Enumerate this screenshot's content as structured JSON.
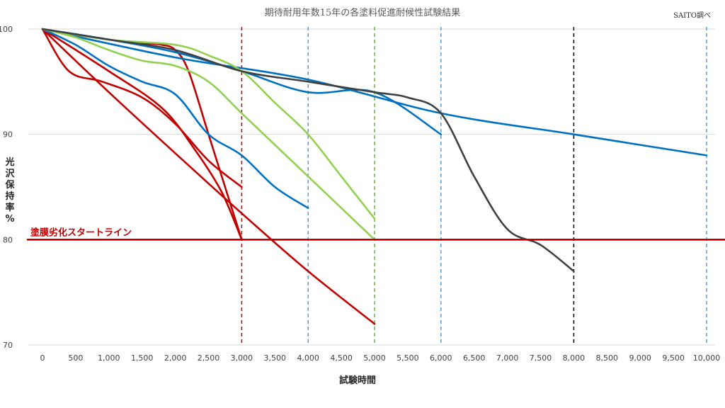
{
  "chart_data": {
    "type": "line",
    "title": "期待耐用年数15年の各塗料促進耐候性試験結果",
    "note": "SAITO調べ",
    "xlabel": "試験時間",
    "ylabel": "光沢保持率%",
    "xlim": [
      0,
      10000
    ],
    "ylim": [
      70,
      100
    ],
    "x_ticks": [
      0,
      500,
      1000,
      1500,
      2000,
      2500,
      3000,
      3500,
      4000,
      4500,
      5000,
      5500,
      6000,
      6500,
      7000,
      7500,
      8000,
      8500,
      9000,
      9500,
      10000
    ],
    "x_tick_labels": [
      "0",
      "500",
      "1,000",
      "1,500",
      "2,000",
      "2,500",
      "3,000",
      "3,500",
      "4,000",
      "4,500",
      "5,000",
      "5,500",
      "6,000",
      "6,500",
      "7,000",
      "7,500",
      "8,000",
      "8,500",
      "9,000",
      "9,500",
      "10,000"
    ],
    "y_ticks": [
      70,
      80,
      90,
      100
    ],
    "y_tick_labels": [
      "70",
      "80",
      "90",
      "100"
    ],
    "grid": "horizontal",
    "reference_line": {
      "y": 80,
      "label": "塗膜劣化スタートライン",
      "color": "#c00000"
    },
    "vlines": [
      {
        "x": 3000,
        "color": "#c00000"
      },
      {
        "x": 4000,
        "color": "#5b9bd5"
      },
      {
        "x": 5000,
        "color": "#70ad47"
      },
      {
        "x": 6000,
        "color": "#5b9bd5"
      },
      {
        "x": 8000,
        "color": "#000000"
      },
      {
        "x": 10000,
        "color": "#5b9bd5"
      }
    ],
    "series": [
      {
        "color": "#c00000",
        "x": [
          0,
          400,
          900,
          1500,
          2000,
          2500,
          3000
        ],
        "y": [
          100,
          96,
          95,
          93.5,
          91,
          87.5,
          85
        ]
      },
      {
        "color": "#c00000",
        "x": [
          0,
          1000,
          2000,
          3000,
          4000,
          5000
        ],
        "y": [
          100,
          94,
          88.2,
          82.5,
          77,
          72
        ]
      },
      {
        "color": "#c00000",
        "x": [
          0,
          1000,
          1800,
          2300,
          2700,
          3000
        ],
        "y": [
          100,
          96,
          92.5,
          88.5,
          84.5,
          80
        ]
      },
      {
        "color": "#c00000",
        "x": [
          0,
          1000,
          1500,
          1800,
          2000,
          2200,
          2500,
          2800,
          3000
        ],
        "y": [
          100,
          99,
          98.7,
          98.5,
          98,
          96,
          90,
          84,
          80
        ]
      },
      {
        "color": "#0070c0",
        "x": [
          0,
          500,
          1000,
          1500,
          2000,
          2500,
          3000,
          3500,
          4000
        ],
        "y": [
          100,
          98.5,
          96.5,
          95,
          93.8,
          90,
          88,
          85,
          83
        ]
      },
      {
        "color": "#0070c0",
        "x": [
          0,
          2000,
          4000,
          6000,
          8000,
          10000
        ],
        "y": [
          100,
          97.3,
          95.2,
          92,
          90,
          88
        ]
      },
      {
        "color": "#0070c0",
        "x": [
          0,
          1000,
          2000,
          3000,
          4000,
          5000,
          6000
        ],
        "y": [
          100,
          99,
          97.8,
          96,
          94,
          94,
          90
        ]
      },
      {
        "color": "#92d050",
        "x": [
          0,
          500,
          1000,
          1500,
          2000,
          2500,
          3000,
          3500,
          4000,
          4500,
          5000
        ],
        "y": [
          100,
          99.2,
          98,
          97,
          96.5,
          95,
          92,
          89,
          86,
          83,
          80
        ]
      },
      {
        "color": "#92d050",
        "x": [
          0,
          1000,
          2000,
          2500,
          3000,
          3500,
          4000,
          4500,
          5000
        ],
        "y": [
          100,
          99,
          98.5,
          97.5,
          96,
          93,
          90,
          86,
          82
        ]
      },
      {
        "color": "#404040",
        "x": [
          0,
          1000,
          2000,
          3000,
          4000,
          5000,
          5500,
          6000,
          6500,
          7000,
          7500,
          8000
        ],
        "y": [
          100,
          99,
          98,
          96,
          95,
          94,
          93.5,
          92,
          86,
          81,
          79.5,
          77
        ]
      }
    ]
  }
}
